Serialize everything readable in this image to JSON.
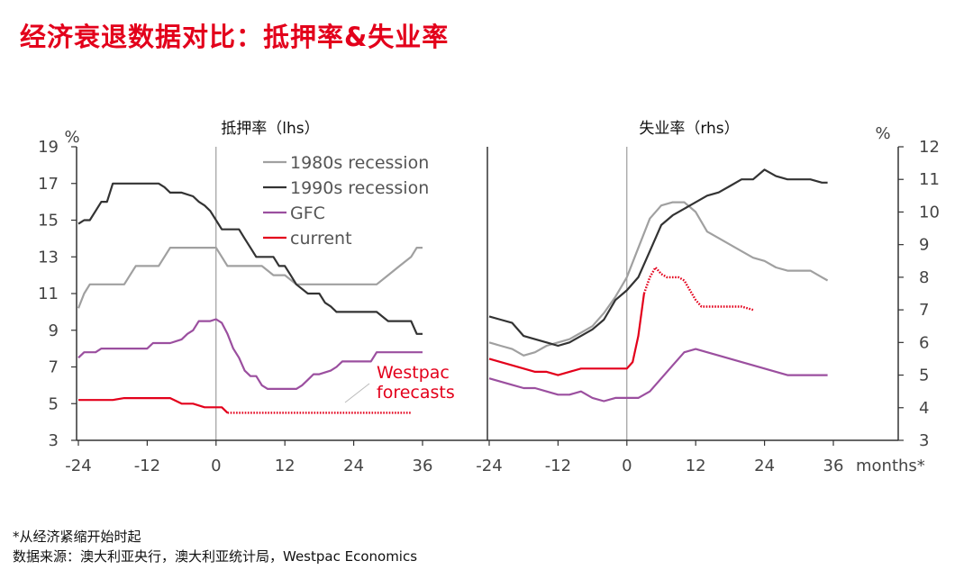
{
  "title": "经济衰退数据对比：抵押率&失业率",
  "footnotes": {
    "line1": "*从经济紧缩开始时起",
    "line2": "数据来源：澳大利亚央行，澳大利亚统计局，Westpac Economics"
  },
  "colors": {
    "title": "#e3001b",
    "s1980": "#a0a0a0",
    "s1990": "#333333",
    "gfc": "#9b4f9f",
    "current": "#e3001b",
    "forecast_text": "#e3001b"
  },
  "chart_data": [
    {
      "type": "line",
      "title": "抵押率（lhs）",
      "ylabel": "%",
      "xlim": [
        -24,
        36
      ],
      "ylim": [
        3,
        19
      ],
      "xticks": [
        "-24",
        "-12",
        "0",
        "12",
        "24",
        "36"
      ],
      "yticks": [
        "3",
        "5",
        "7",
        "9",
        "11",
        "13",
        "15",
        "17",
        "19"
      ],
      "legend": {
        "placement": "top-right",
        "entries": [
          "1980s recession",
          "1990s recession",
          "GFC",
          "current"
        ]
      },
      "annotation": [
        "Westpac",
        "forecasts"
      ],
      "series": [
        {
          "name": "1980s recession",
          "color": "#a0a0a0",
          "x": [
            -24,
            -23,
            -22,
            -20,
            -18,
            -16,
            -15,
            -14,
            -12,
            -10,
            -8,
            -6,
            -4,
            -2,
            0,
            2,
            4,
            6,
            8,
            10,
            12,
            14,
            16,
            18,
            20,
            22,
            24,
            26,
            28,
            30,
            32,
            34,
            35,
            36
          ],
          "y": [
            10.2,
            11.0,
            11.5,
            11.5,
            11.5,
            11.5,
            12.0,
            12.5,
            12.5,
            12.5,
            13.5,
            13.5,
            13.5,
            13.5,
            13.5,
            12.5,
            12.5,
            12.5,
            12.5,
            12.0,
            12.0,
            11.5,
            11.5,
            11.5,
            11.5,
            11.5,
            11.5,
            11.5,
            11.5,
            12.0,
            12.5,
            13.0,
            13.5,
            13.5
          ]
        },
        {
          "name": "1990s recession",
          "color": "#333333",
          "x": [
            -24,
            -23,
            -22,
            -21,
            -20,
            -19,
            -18,
            -17,
            -16,
            -14,
            -12,
            -10,
            -9,
            -8,
            -6,
            -4,
            -3,
            -2,
            -1,
            0,
            1,
            2,
            4,
            5,
            6,
            7,
            8,
            10,
            11,
            12,
            13,
            14,
            16,
            18,
            19,
            20,
            21,
            22,
            24,
            26,
            28,
            30,
            32,
            34,
            35,
            36
          ],
          "y": [
            14.8,
            15.0,
            15.0,
            15.5,
            16.0,
            16.0,
            17.0,
            17.0,
            17.0,
            17.0,
            17.0,
            17.0,
            16.8,
            16.5,
            16.5,
            16.3,
            16.0,
            15.8,
            15.5,
            15.0,
            14.5,
            14.5,
            14.5,
            14.0,
            13.5,
            13.0,
            13.0,
            13.0,
            12.5,
            12.5,
            12.0,
            11.5,
            11.0,
            11.0,
            10.5,
            10.3,
            10.0,
            10.0,
            10.0,
            10.0,
            10.0,
            9.5,
            9.5,
            9.5,
            8.8,
            8.8
          ]
        },
        {
          "name": "GFC",
          "color": "#9b4f9f",
          "x": [
            -24,
            -23,
            -21,
            -20,
            -18,
            -16,
            -14,
            -12,
            -11,
            -10,
            -8,
            -6,
            -5,
            -4,
            -3,
            -2,
            -1,
            0,
            1,
            2,
            3,
            4,
            5,
            6,
            7,
            8,
            9,
            10,
            12,
            14,
            15,
            16,
            17,
            18,
            20,
            21,
            22,
            24,
            26,
            27,
            28,
            30,
            32,
            34,
            36
          ],
          "y": [
            7.5,
            7.8,
            7.8,
            8.0,
            8.0,
            8.0,
            8.0,
            8.0,
            8.3,
            8.3,
            8.3,
            8.5,
            8.8,
            9.0,
            9.5,
            9.5,
            9.5,
            9.6,
            9.4,
            8.8,
            8.0,
            7.5,
            6.8,
            6.5,
            6.5,
            6.0,
            5.8,
            5.8,
            5.8,
            5.8,
            6.0,
            6.3,
            6.6,
            6.6,
            6.8,
            7.0,
            7.3,
            7.3,
            7.3,
            7.3,
            7.8,
            7.8,
            7.8,
            7.8,
            7.8
          ]
        },
        {
          "name": "current",
          "color": "#e3001b",
          "x": [
            -24,
            -22,
            -20,
            -18,
            -16,
            -14,
            -12,
            -11,
            -10,
            -8,
            -6,
            -5,
            -4,
            -2,
            0,
            1,
            2
          ],
          "y": [
            5.2,
            5.2,
            5.2,
            5.2,
            5.3,
            5.3,
            5.3,
            5.3,
            5.3,
            5.3,
            5.0,
            5.0,
            5.0,
            4.8,
            4.8,
            4.8,
            4.5
          ]
        },
        {
          "name": "current forecast",
          "color": "#e3001b",
          "dotted": true,
          "x": [
            2,
            12,
            24,
            34
          ],
          "y": [
            4.5,
            4.5,
            4.5,
            4.5
          ]
        }
      ]
    },
    {
      "type": "line",
      "title": "失业率（rhs）",
      "ylabel": "%",
      "xlabel": "months*",
      "xlim": [
        -24,
        36
      ],
      "ylim": [
        3,
        12
      ],
      "xticks": [
        "-24",
        "-12",
        "0",
        "12",
        "24",
        "36"
      ],
      "yticks": [
        "3",
        "4",
        "5",
        "6",
        "7",
        "8",
        "9",
        "10",
        "11",
        "12"
      ],
      "series": [
        {
          "name": "1980s recession",
          "color": "#a0a0a0",
          "x": [
            -24,
            -22,
            -20,
            -18,
            -16,
            -14,
            -12,
            -10,
            -8,
            -6,
            -4,
            -2,
            0,
            2,
            4,
            6,
            8,
            10,
            12,
            14,
            16,
            18,
            20,
            22,
            24,
            26,
            28,
            30,
            32,
            34,
            35
          ],
          "y": [
            6.0,
            5.9,
            5.8,
            5.6,
            5.7,
            5.9,
            6.0,
            6.1,
            6.3,
            6.5,
            6.9,
            7.4,
            8.0,
            8.9,
            9.8,
            10.2,
            10.3,
            10.3,
            10.0,
            9.4,
            9.2,
            9.0,
            8.8,
            8.6,
            8.5,
            8.3,
            8.2,
            8.2,
            8.2,
            8.0,
            7.9
          ]
        },
        {
          "name": "1990s recession",
          "color": "#333333",
          "x": [
            -24,
            -22,
            -20,
            -18,
            -16,
            -14,
            -12,
            -10,
            -8,
            -6,
            -4,
            -2,
            0,
            2,
            4,
            6,
            8,
            10,
            12,
            14,
            16,
            18,
            20,
            22,
            24,
            26,
            28,
            30,
            32,
            34,
            35
          ],
          "y": [
            6.8,
            6.7,
            6.6,
            6.2,
            6.1,
            6.0,
            5.9,
            6.0,
            6.2,
            6.4,
            6.7,
            7.3,
            7.6,
            8.0,
            8.8,
            9.6,
            9.9,
            10.1,
            10.3,
            10.5,
            10.6,
            10.8,
            11.0,
            11.0,
            11.3,
            11.1,
            11.0,
            11.0,
            11.0,
            10.9,
            10.9
          ]
        },
        {
          "name": "GFC",
          "color": "#9b4f9f",
          "x": [
            -24,
            -22,
            -20,
            -18,
            -16,
            -14,
            -12,
            -10,
            -8,
            -6,
            -4,
            -2,
            0,
            2,
            4,
            6,
            8,
            10,
            12,
            14,
            16,
            18,
            20,
            22,
            24,
            26,
            28,
            30,
            32,
            34,
            35
          ],
          "y": [
            4.9,
            4.8,
            4.7,
            4.6,
            4.6,
            4.5,
            4.4,
            4.4,
            4.5,
            4.3,
            4.2,
            4.3,
            4.3,
            4.3,
            4.5,
            4.9,
            5.3,
            5.7,
            5.8,
            5.7,
            5.6,
            5.5,
            5.4,
            5.3,
            5.2,
            5.1,
            5.0,
            5.0,
            5.0,
            5.0,
            5.0
          ]
        },
        {
          "name": "current",
          "color": "#e3001b",
          "x": [
            -24,
            -22,
            -20,
            -18,
            -16,
            -14,
            -12,
            -10,
            -8,
            -6,
            -4,
            -2,
            0,
            1,
            2,
            3
          ],
          "y": [
            5.5,
            5.4,
            5.3,
            5.2,
            5.1,
            5.1,
            5.0,
            5.1,
            5.2,
            5.2,
            5.2,
            5.2,
            5.2,
            5.4,
            6.2,
            7.5
          ]
        },
        {
          "name": "current forecast",
          "color": "#e3001b",
          "dotted": true,
          "x": [
            3,
            4,
            5,
            6,
            7,
            8,
            9,
            10,
            11,
            12,
            13,
            14,
            16,
            18,
            20,
            22
          ],
          "y": [
            7.5,
            8.0,
            8.3,
            8.1,
            8.0,
            8.0,
            8.0,
            7.9,
            7.6,
            7.3,
            7.1,
            7.1,
            7.1,
            7.1,
            7.1,
            7.0
          ]
        }
      ]
    }
  ]
}
